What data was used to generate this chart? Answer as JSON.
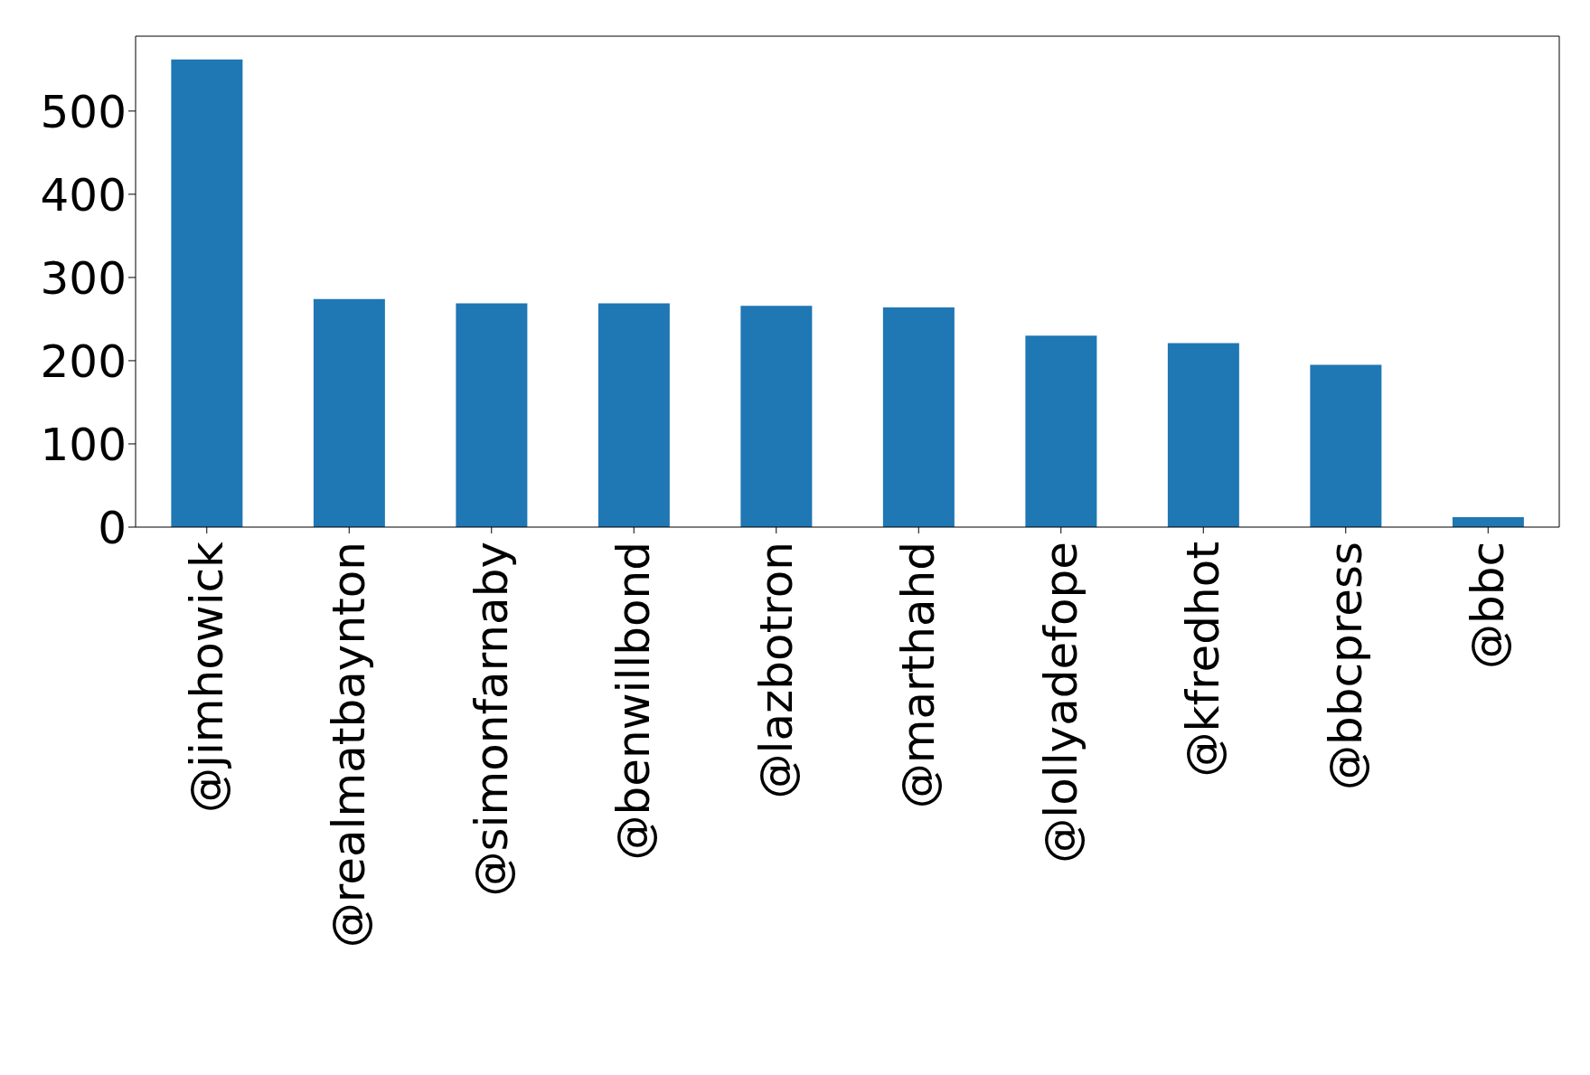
{
  "chart_data": {
    "type": "bar",
    "categories": [
      "@jimhowick",
      "@realmatbaynton",
      "@simonfarnaby",
      "@benwillbond",
      "@lazbotron",
      "@marthahd",
      "@lollyadefope",
      "@kfredhot",
      "@bbcpress",
      "@bbc"
    ],
    "values": [
      562,
      274,
      269,
      269,
      266,
      264,
      230,
      221,
      195,
      12
    ],
    "color": "#1f77b4",
    "ylim": [
      0,
      590
    ],
    "yticks": [
      0,
      100,
      200,
      300,
      400,
      500
    ],
    "grid": false,
    "legend": false
  }
}
